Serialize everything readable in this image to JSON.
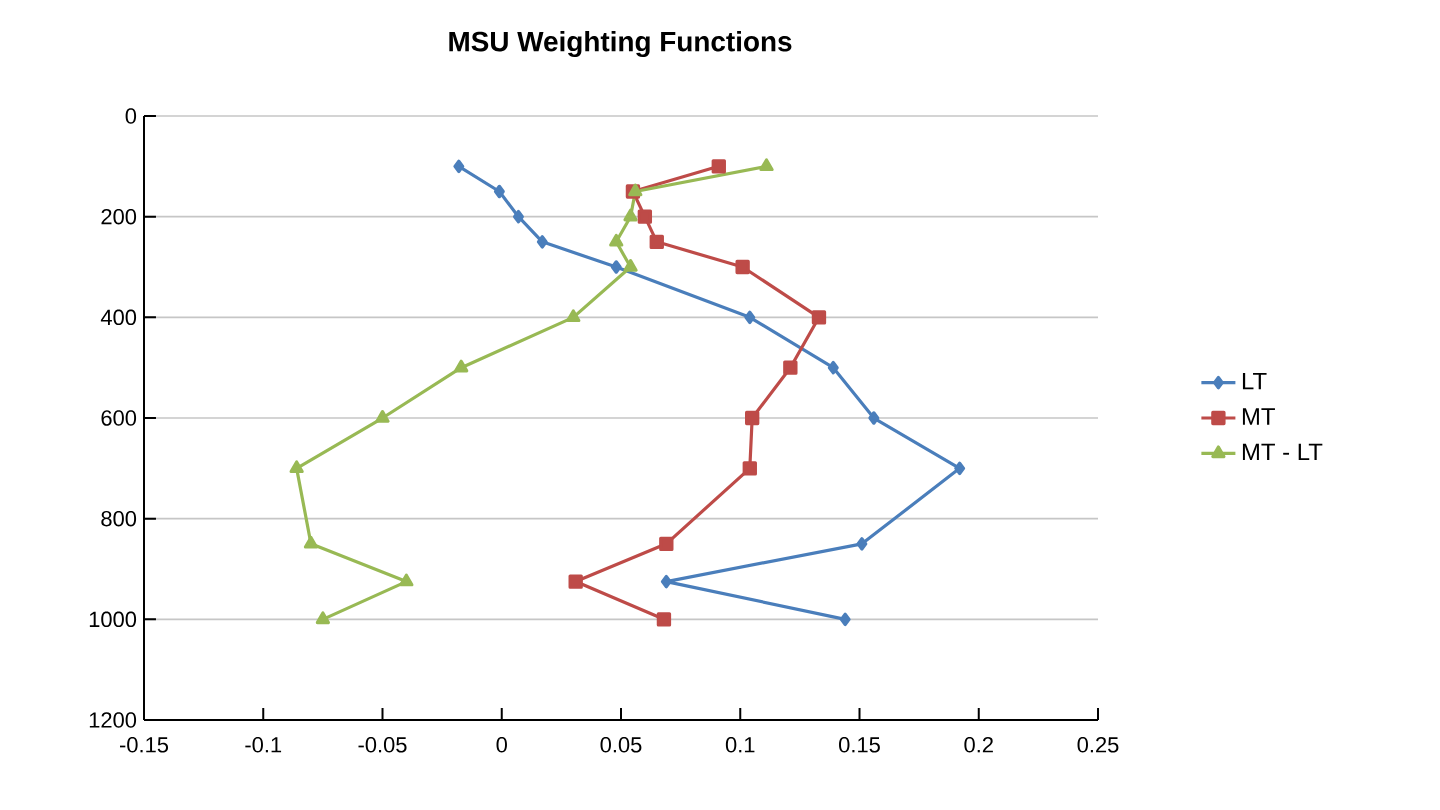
{
  "chart_data": {
    "type": "line",
    "title": "MSU Weighting Functions",
    "series": [
      {
        "name": "LT",
        "color": "#4a7ebb",
        "marker": "diamond",
        "x": [
          -0.018,
          -0.001,
          0.007,
          0.017,
          0.048,
          0.104,
          0.139,
          0.156,
          0.192,
          0.151,
          0.069,
          0.144
        ],
        "values": [
          100,
          150,
          200,
          250,
          300,
          400,
          500,
          600,
          700,
          850,
          925,
          1000
        ]
      },
      {
        "name": "MT",
        "color": "#be4b48",
        "marker": "square",
        "x": [
          0.091,
          0.055,
          0.06,
          0.065,
          0.101,
          0.133,
          0.121,
          0.105,
          0.104,
          0.069,
          0.031,
          0.068
        ],
        "values": [
          100,
          150,
          200,
          250,
          300,
          400,
          500,
          600,
          700,
          850,
          925,
          1000
        ]
      },
      {
        "name": "MT - LT",
        "color": "#98b954",
        "marker": "triangle",
        "x": [
          0.111,
          0.056,
          0.054,
          0.048,
          0.054,
          0.03,
          -0.017,
          -0.05,
          -0.086,
          -0.08,
          -0.04,
          -0.075
        ],
        "values": [
          100,
          150,
          200,
          250,
          300,
          400,
          500,
          600,
          700,
          850,
          925,
          1000
        ]
      }
    ],
    "xlim": [
      -0.15,
      0.25
    ],
    "xticks": [
      -0.15,
      -0.1,
      -0.05,
      0,
      0.05,
      0.1,
      0.15,
      0.2,
      0.25
    ],
    "ylim": [
      1200,
      0
    ],
    "yticks": [
      0,
      200,
      400,
      600,
      800,
      1000,
      1200
    ],
    "grid": "y",
    "legend": "right",
    "line_style": "solid"
  }
}
